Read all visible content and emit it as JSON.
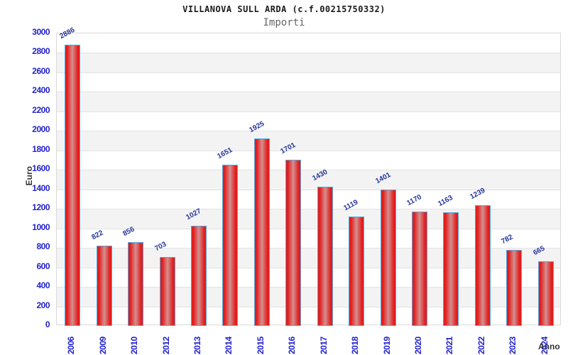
{
  "chart_data": {
    "type": "bar",
    "title": "VILLANOVA SULL ARDA (c.f.00215750332)",
    "subtitle": "Importi",
    "xlabel": "Anno",
    "ylabel": "Euro",
    "categories": [
      "2006",
      "2009",
      "2010",
      "2012",
      "2013",
      "2014",
      "2015",
      "2016",
      "2017",
      "2018",
      "2019",
      "2020",
      "2021",
      "2022",
      "2023",
      "2024"
    ],
    "values": [
      2886,
      822,
      856,
      703,
      1027,
      1651,
      1925,
      1701,
      1430,
      1119,
      1401,
      1170,
      1163,
      1239,
      782,
      665
    ],
    "ylim": [
      0,
      3000
    ],
    "ytick_step": 200,
    "yticks": [
      0,
      200,
      400,
      600,
      800,
      1000,
      1200,
      1400,
      1600,
      1800,
      2000,
      2200,
      2400,
      2600,
      2800,
      3000
    ],
    "grid": true,
    "legend": "none",
    "colors": {
      "bar_fill_edge": "#e21d1d",
      "bar_fill_center": "#d49090",
      "bar_border": "#55a6e0",
      "axis_tick_label": "#2222cc",
      "value_label": "#223399",
      "band_fill": "#f3f3f3",
      "gridline": "#e2e2e2",
      "axis_title": "#333333",
      "title_text": "#1a1a1a",
      "subtitle_text": "#666666"
    }
  }
}
